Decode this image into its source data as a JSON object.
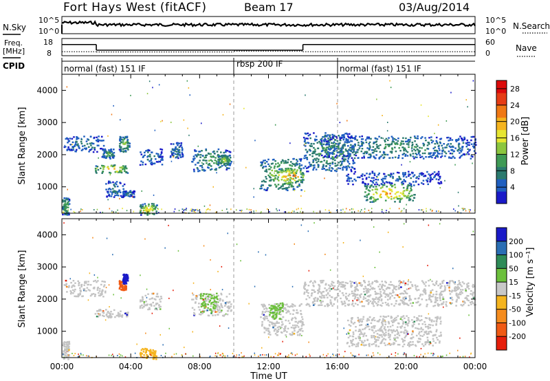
{
  "header": {
    "station": "Fort Hays West (fitACF)",
    "beam": "Beam 17",
    "date": "03/Aug/2014"
  },
  "noise_panel": {
    "left_label": "N.Sky",
    "right_label": "N.Search",
    "left_ticks": [
      "10^5",
      "10^0"
    ],
    "right_ticks": [
      "10^5",
      "10^0"
    ]
  },
  "freq_panel": {
    "left_label_1": "Freq.",
    "left_label_2": "[MHz]",
    "right_label": "Nave",
    "left_ticks": [
      "18",
      "8"
    ],
    "right_ticks": [
      "60",
      "0"
    ],
    "freq_steps": [
      {
        "start_h": 0.0,
        "end_h": 2.0,
        "freq": 14.5
      },
      {
        "start_h": 2.0,
        "end_h": 14.0,
        "freq": 11.2
      },
      {
        "start_h": 14.0,
        "end_h": 24.0,
        "freq": 14.5
      }
    ],
    "nave_steps": [
      {
        "start_h": 0.0,
        "end_h": 2.0,
        "nave": 14
      },
      {
        "start_h": 2.0,
        "end_h": 10.0,
        "nave": 13
      },
      {
        "start_h": 10.0,
        "end_h": 14.0,
        "nave": 16
      },
      {
        "start_h": 14.0,
        "end_h": 24.0,
        "nave": 14
      }
    ]
  },
  "cpid": {
    "label": "CPID",
    "segments": [
      {
        "name": "normal (fast) 151 IF",
        "start_h": 0.0,
        "end_h": 10.0
      },
      {
        "name": "rbsp 200 IF",
        "start_h": 10.0,
        "end_h": 16.0
      },
      {
        "name": "normal (fast) 151 IF",
        "start_h": 16.0,
        "end_h": 24.0
      }
    ]
  },
  "chart_data": [
    {
      "type": "heatmap",
      "title": "",
      "xlabel": "Time UT",
      "ylabel": "Slant Range [km]",
      "xlim": [
        0,
        24
      ],
      "ylim": [
        180,
        4500
      ],
      "yticks": [
        1000,
        2000,
        3000,
        4000
      ],
      "xtick_labels": [
        "00:00",
        "04:00",
        "08:00",
        "12:00",
        "16:00",
        "20:00",
        "00:00"
      ],
      "colorbar": {
        "label": "Power [dB]",
        "ticks": [
          4,
          8,
          12,
          16,
          20,
          24,
          28
        ],
        "range": [
          0,
          30
        ],
        "colors": [
          "#1a1ac8",
          "#1f5fc0",
          "#2b7a6e",
          "#3f9a55",
          "#8cc63f",
          "#e6e632",
          "#f5b41e",
          "#f07814",
          "#e63c14",
          "#dc0a0a"
        ]
      },
      "echo_regions": [
        {
          "t0": 0.0,
          "t1": 0.4,
          "r0": 150,
          "r1": 700,
          "power": 14
        },
        {
          "t0": 0.1,
          "t1": 2.5,
          "r0": 2100,
          "r1": 2600,
          "power": 8
        },
        {
          "t0": 1.9,
          "t1": 3.8,
          "r0": 1450,
          "r1": 1700,
          "power": 22
        },
        {
          "t0": 2.3,
          "t1": 3.0,
          "r0": 1900,
          "r1": 2200,
          "power": 12
        },
        {
          "t0": 2.5,
          "t1": 3.6,
          "r0": 700,
          "r1": 1200,
          "power": 8
        },
        {
          "t0": 3.3,
          "t1": 3.9,
          "r0": 2100,
          "r1": 2600,
          "power": 14
        },
        {
          "t0": 3.5,
          "t1": 4.2,
          "r0": 700,
          "r1": 900,
          "power": 8
        },
        {
          "t0": 4.5,
          "t1": 5.5,
          "r0": 150,
          "r1": 500,
          "power": 20
        },
        {
          "t0": 4.5,
          "t1": 5.8,
          "r0": 1700,
          "r1": 2200,
          "power": 8
        },
        {
          "t0": 6.2,
          "t1": 7.0,
          "r0": 1900,
          "r1": 2400,
          "power": 8
        },
        {
          "t0": 7.5,
          "t1": 9.8,
          "r0": 1500,
          "r1": 2200,
          "power": 12
        },
        {
          "t0": 9.0,
          "t1": 9.8,
          "r0": 1700,
          "r1": 2000,
          "power": 16
        },
        {
          "t0": 11.5,
          "t1": 14.0,
          "r0": 900,
          "r1": 1900,
          "power": 16
        },
        {
          "t0": 12.5,
          "t1": 14.0,
          "r0": 1100,
          "r1": 1600,
          "power": 26
        },
        {
          "t0": 14.0,
          "t1": 17.0,
          "r0": 1500,
          "r1": 2700,
          "power": 12
        },
        {
          "t0": 15.0,
          "t1": 24.0,
          "r0": 1900,
          "r1": 2600,
          "power": 10
        },
        {
          "t0": 16.5,
          "t1": 22.0,
          "r0": 1100,
          "r1": 1500,
          "power": 6
        },
        {
          "t0": 17.5,
          "t1": 20.5,
          "r0": 550,
          "r1": 1100,
          "power": 22
        }
      ]
    },
    {
      "type": "heatmap",
      "title": "",
      "xlabel": "Time UT",
      "ylabel": "Slant Range [km]",
      "xlim": [
        0,
        24
      ],
      "ylim": [
        180,
        4500
      ],
      "yticks": [
        1000,
        2000,
        3000,
        4000
      ],
      "xtick_labels": [
        "00:00",
        "04:00",
        "08:00",
        "12:00",
        "16:00",
        "20:00",
        "00:00"
      ],
      "colorbar": {
        "label": "Velocity [m s⁻¹]",
        "ticks": [
          200,
          100,
          50,
          15,
          -15,
          -50,
          -100,
          -200
        ],
        "colors": [
          "#1a1ac8",
          "#2a6eb4",
          "#2e8b57",
          "#6cc03c",
          "#c8c8c8",
          "#f5b41e",
          "#f58c1e",
          "#f05a14",
          "#e61e0a"
        ]
      },
      "ground_scatter_color": "#c3c3c3",
      "velocity_regions": [
        {
          "t0": 0.0,
          "t1": 0.4,
          "r0": 150,
          "r1": 700,
          "kind": "ground"
        },
        {
          "t0": 0.1,
          "t1": 2.5,
          "r0": 2100,
          "r1": 2600,
          "kind": "ground"
        },
        {
          "t0": 1.9,
          "t1": 3.8,
          "r0": 1450,
          "r1": 1700,
          "kind": "ground"
        },
        {
          "t0": 3.3,
          "t1": 3.7,
          "r0": 2300,
          "r1": 2600,
          "kind": "-100"
        },
        {
          "t0": 3.5,
          "t1": 3.8,
          "r0": 2500,
          "r1": 2800,
          "kind": "200"
        },
        {
          "t0": 4.5,
          "t1": 5.5,
          "r0": 150,
          "r1": 500,
          "kind": "-50"
        },
        {
          "t0": 4.5,
          "t1": 5.8,
          "r0": 1700,
          "r1": 2200,
          "kind": "ground"
        },
        {
          "t0": 7.5,
          "t1": 9.8,
          "r0": 1500,
          "r1": 2200,
          "kind": "ground"
        },
        {
          "t0": 8.0,
          "t1": 9.0,
          "r0": 1600,
          "r1": 2200,
          "kind": "50"
        },
        {
          "t0": 11.5,
          "t1": 14.0,
          "r0": 900,
          "r1": 1900,
          "kind": "ground"
        },
        {
          "t0": 12.0,
          "t1": 12.8,
          "r0": 1400,
          "r1": 1900,
          "kind": "50"
        },
        {
          "t0": 14.0,
          "t1": 24.0,
          "r0": 1800,
          "r1": 2600,
          "kind": "ground"
        },
        {
          "t0": 16.5,
          "t1": 22.0,
          "r0": 550,
          "r1": 1500,
          "kind": "ground"
        }
      ]
    }
  ]
}
